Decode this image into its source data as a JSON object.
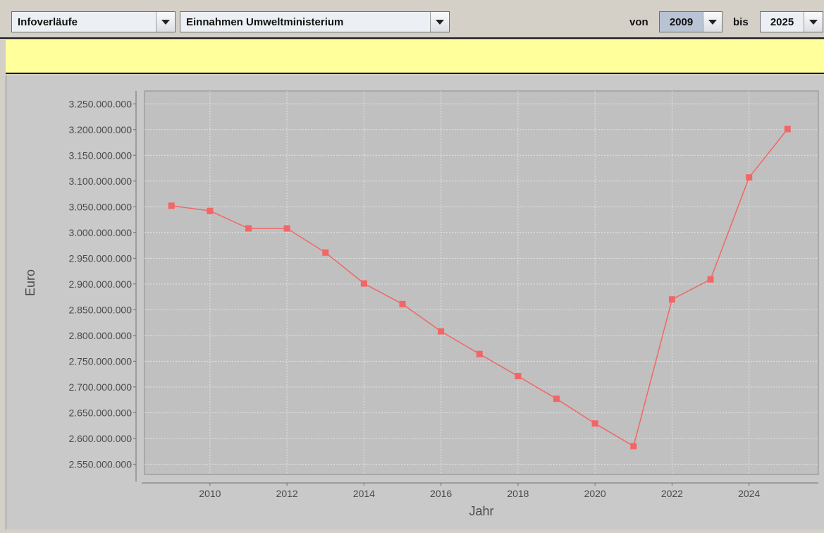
{
  "toolbar": {
    "view_select": "Infoverläufe",
    "dataset_select": "Einnahmen Umweltministerium",
    "from_label": "von",
    "from_year": "2009",
    "to_label": "bis",
    "to_year": "2025"
  },
  "colors": {
    "plot_bg": "#c0c0c0",
    "series": "#f26666",
    "info_bar": "#ffff9c"
  },
  "chart_data": {
    "type": "line",
    "xlabel": "Jahr",
    "ylabel": "Euro",
    "grid": true,
    "legend": "none",
    "x": [
      2009,
      2010,
      2011,
      2012,
      2013,
      2014,
      2015,
      2016,
      2017,
      2018,
      2019,
      2020,
      2021,
      2022,
      2023,
      2024,
      2025
    ],
    "values": [
      3052000000,
      3042000000,
      3008000000,
      3008000000,
      2961000000,
      2901000000,
      2861000000,
      2808000000,
      2764000000,
      2721000000,
      2677000000,
      2629000000,
      2585000000,
      2870000000,
      2909000000,
      3107000000,
      3201000000
    ],
    "xlim": [
      2008.3,
      2025.8
    ],
    "ylim": [
      2530000000,
      3275000000
    ],
    "x_ticks": [
      2010,
      2012,
      2014,
      2016,
      2018,
      2020,
      2022,
      2024
    ],
    "x_tick_labels": [
      "2010",
      "2012",
      "2014",
      "2016",
      "2018",
      "2020",
      "2022",
      "2024"
    ],
    "y_ticks": [
      2550000000,
      2600000000,
      2650000000,
      2700000000,
      2750000000,
      2800000000,
      2850000000,
      2900000000,
      2950000000,
      3000000000,
      3050000000,
      3100000000,
      3150000000,
      3200000000,
      3250000000
    ],
    "y_tick_labels": [
      "2.550.000.000",
      "2.600.000.000",
      "2.650.000.000",
      "2.700.000.000",
      "2.750.000.000",
      "2.800.000.000",
      "2.850.000.000",
      "2.900.000.000",
      "2.950.000.000",
      "3.000.000.000",
      "3.050.000.000",
      "3.100.000.000",
      "3.150.000.000",
      "3.200.000.000",
      "3.250.000.000"
    ]
  }
}
